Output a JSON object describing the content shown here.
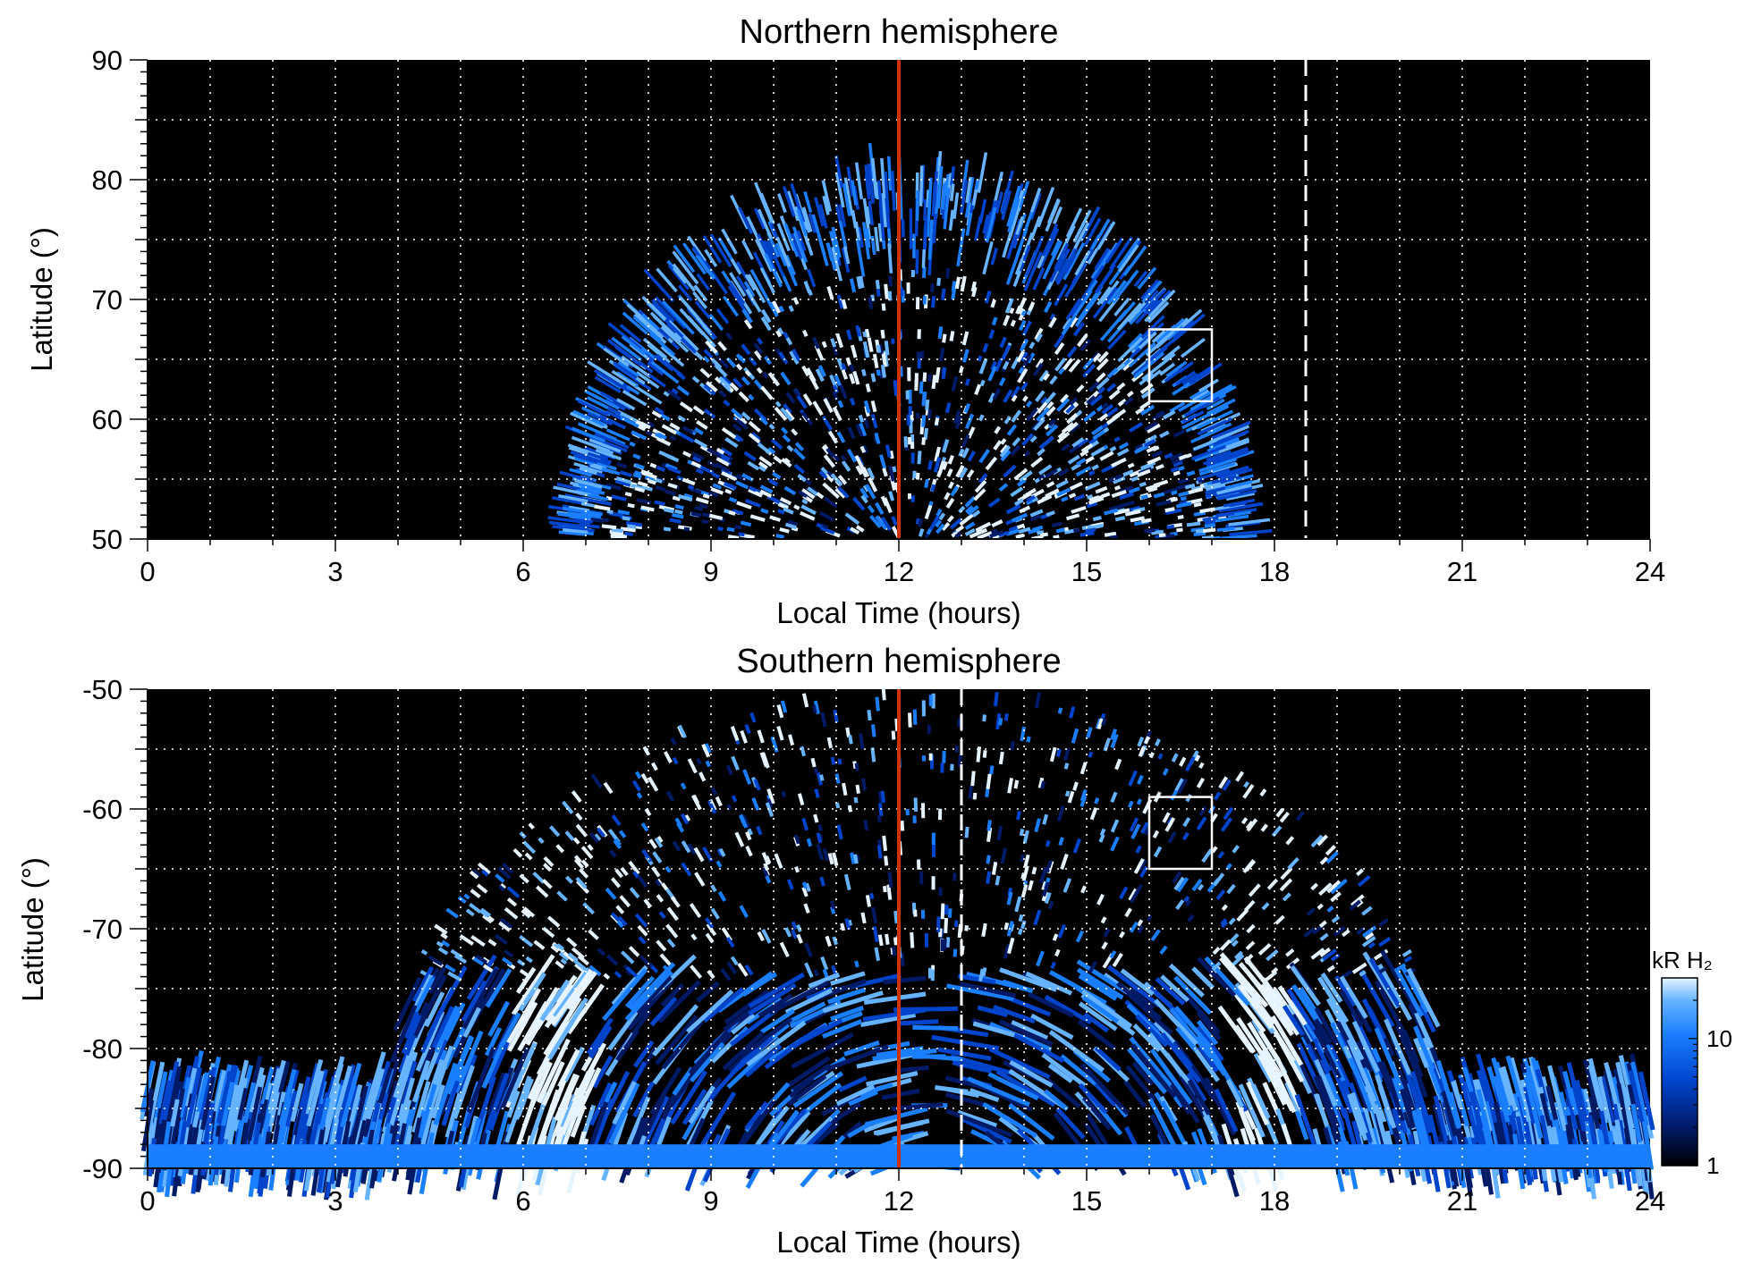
{
  "chart_data": [
    {
      "type": "heatmap",
      "title": "Northern hemisphere",
      "xlabel": "Local Time (hours)",
      "ylabel": "Latitude (°)",
      "xlim": [
        0,
        24
      ],
      "ylim": [
        50,
        90
      ],
      "xticks": [
        "0",
        "3",
        "6",
        "9",
        "12",
        "15",
        "18",
        "21",
        "24"
      ],
      "yticks": [
        "50",
        "60",
        "70",
        "80",
        "90"
      ],
      "grid": true,
      "colormap": [
        "#000000",
        "#001a66",
        "#0044cc",
        "#1a7fff",
        "#66b3ff",
        "#e6f4ff"
      ],
      "colorscale": "log",
      "emission_region": {
        "local_time_range": [
          7,
          17.3
        ],
        "latitude_max": 80,
        "gap_latitude": [
          67,
          69
        ],
        "gap_local_time": [
          10.2,
          13.5
        ]
      },
      "vertical_lines": [
        {
          "x": 12,
          "color": "#cc3300",
          "style": "solid"
        },
        {
          "x": 18.5,
          "color": "#ffffff",
          "style": "dashed"
        }
      ],
      "box": {
        "x": [
          16,
          17
        ],
        "y": [
          61.5,
          67.5
        ],
        "color": "#ffffff"
      }
    },
    {
      "type": "heatmap",
      "title": "Southern hemisphere",
      "xlabel": "Local Time (hours)",
      "ylabel": "Latitude (°)",
      "xlim": [
        0,
        24
      ],
      "ylim": [
        -90,
        -50
      ],
      "xticks": [
        "0",
        "3",
        "6",
        "9",
        "12",
        "15",
        "18",
        "21",
        "24"
      ],
      "yticks": [
        "-90",
        "-80",
        "-70",
        "-60",
        "-50"
      ],
      "grid": true,
      "colormap": [
        "#000000",
        "#001a66",
        "#0044cc",
        "#1a7fff",
        "#66b3ff",
        "#e6f4ff"
      ],
      "colorscale": "log",
      "emission_region": {
        "local_time_range": [
          0,
          24
        ],
        "latitude_top_day": -50,
        "bright_bands_local_time": [
          6.5,
          17.8
        ]
      },
      "vertical_lines": [
        {
          "x": 12,
          "color": "#cc3300",
          "style": "solid"
        },
        {
          "x": 13,
          "color": "#ffffff",
          "style": "dashed"
        }
      ],
      "box": {
        "x": [
          16,
          17
        ],
        "y": [
          -65,
          -59
        ],
        "color": "#ffffff"
      }
    }
  ],
  "colorbar": {
    "label": "kR H₂",
    "tick_labels": [
      "1",
      "10"
    ],
    "range": [
      1,
      30
    ],
    "scale": "log"
  }
}
